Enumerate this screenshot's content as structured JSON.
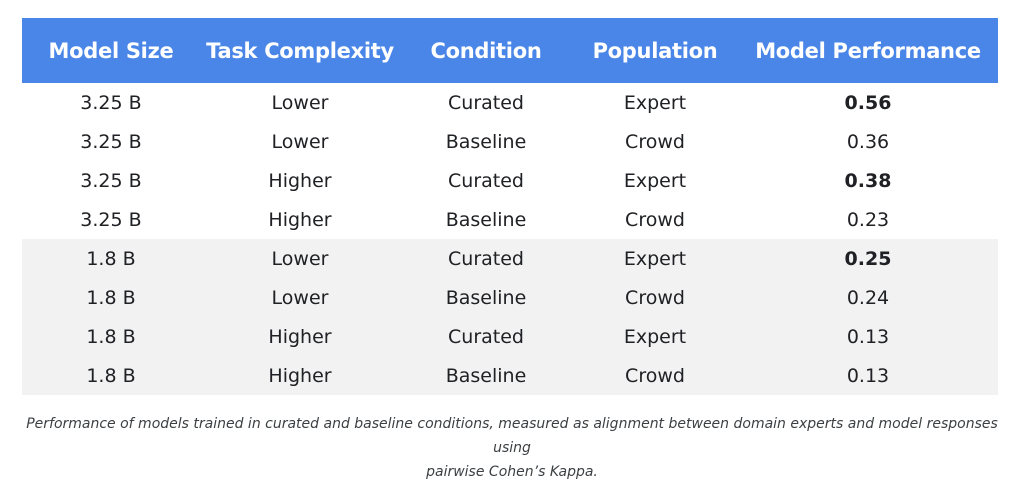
{
  "table": {
    "headers": [
      "Model Size",
      "Task Complexity",
      "Condition",
      "Population",
      "Model Performance"
    ],
    "rows": [
      {
        "size": "3.25 B",
        "complexity": "Lower",
        "condition": "Curated",
        "population": "Expert",
        "performance": "0.56",
        "bold": true,
        "shaded": false
      },
      {
        "size": "3.25 B",
        "complexity": "Lower",
        "condition": "Baseline",
        "population": "Crowd",
        "performance": "0.36",
        "bold": false,
        "shaded": false
      },
      {
        "size": "3.25 B",
        "complexity": "Higher",
        "condition": "Curated",
        "population": "Expert",
        "performance": "0.38",
        "bold": true,
        "shaded": false
      },
      {
        "size": "3.25 B",
        "complexity": "Higher",
        "condition": "Baseline",
        "population": "Crowd",
        "performance": "0.23",
        "bold": false,
        "shaded": false
      },
      {
        "size": "1.8 B",
        "complexity": "Lower",
        "condition": "Curated",
        "population": "Expert",
        "performance": "0.25",
        "bold": true,
        "shaded": true
      },
      {
        "size": "1.8 B",
        "complexity": "Lower",
        "condition": "Baseline",
        "population": "Crowd",
        "performance": "0.24",
        "bold": false,
        "shaded": true
      },
      {
        "size": "1.8 B",
        "complexity": "Higher",
        "condition": "Curated",
        "population": "Expert",
        "performance": "0.13",
        "bold": false,
        "shaded": true
      },
      {
        "size": "1.8 B",
        "complexity": "Higher",
        "condition": "Baseline",
        "population": "Crowd",
        "performance": "0.13",
        "bold": false,
        "shaded": true
      }
    ]
  },
  "caption": {
    "line1": "Performance of models trained in curated and baseline conditions, measured as alignment between domain experts and model responses using",
    "line2": "pairwise Cohen’s Kappa."
  },
  "colors": {
    "header_bg": "#4a86e8",
    "header_text": "#ffffff",
    "shaded_row_bg": "#f2f2f2"
  }
}
